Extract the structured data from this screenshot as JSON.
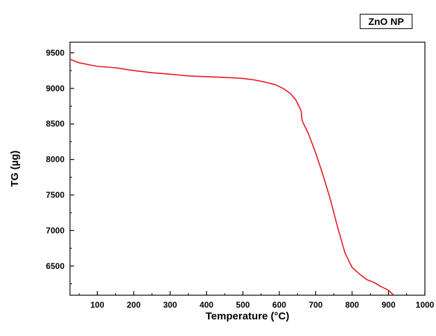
{
  "legend": {
    "label": "ZnO NP"
  },
  "chart_data": {
    "type": "line",
    "title": "",
    "xlabel": "Temperature (°C)",
    "ylabel": "TG (µg)",
    "xlim": [
      25,
      1000
    ],
    "ylim": [
      6090,
      9650
    ],
    "x_ticks": [
      100,
      200,
      300,
      400,
      500,
      600,
      700,
      800,
      900,
      1000
    ],
    "y_ticks": [
      6500,
      7000,
      7500,
      8000,
      8500,
      9000,
      9500
    ],
    "grid": false,
    "series_color": "#e8141c",
    "series": [
      {
        "x": [
          25,
          50,
          100,
          150,
          200,
          250,
          300,
          350,
          400,
          450,
          500,
          530,
          560,
          590,
          610,
          630,
          645,
          655,
          660,
          662,
          665,
          680,
          700,
          720,
          740,
          760,
          780,
          800,
          820,
          840,
          860,
          880,
          900,
          912
        ],
        "y": [
          9410,
          9360,
          9310,
          9290,
          9250,
          9220,
          9200,
          9175,
          9165,
          9155,
          9140,
          9120,
          9090,
          9050,
          9000,
          8930,
          8840,
          8740,
          8680,
          8560,
          8520,
          8360,
          8090,
          7780,
          7440,
          7050,
          6690,
          6480,
          6390,
          6310,
          6270,
          6210,
          6160,
          6100
        ]
      }
    ]
  }
}
